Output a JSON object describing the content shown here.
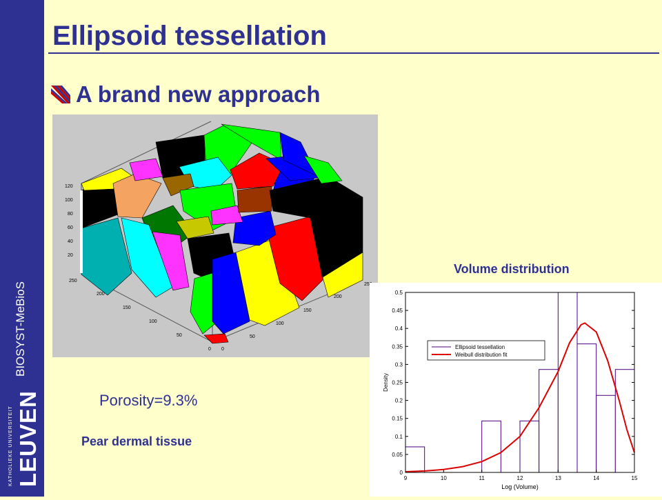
{
  "slide": {
    "title": "Ellipsoid tessellation",
    "bullet": "A brand new approach",
    "sidebar_text": "BIOSYST-MeBioS",
    "logo_small": "KATHOLIEKE UNIVERSITEIT",
    "logo_big": "LEUVEN",
    "porosity": "Porosity=9.3%",
    "tissue": "Pear dermal tissue",
    "volume_title": "Volume distribution"
  },
  "colors": {
    "accent": "#2e3192",
    "background": "#ffffcc",
    "curve": "#dd0000",
    "bars": "#4b0082"
  },
  "panel3d": {
    "z_ticks": [
      "120",
      "100",
      "80",
      "60",
      "40",
      "20"
    ],
    "y_ticks": [
      "250",
      "200",
      "150",
      "100",
      "50",
      "0"
    ],
    "x_ticks": [
      "0",
      "50",
      "100",
      "150",
      "200",
      "250"
    ]
  },
  "chart_data": {
    "type": "bar",
    "xlabel": "Log (Volume)",
    "ylabel": "Density",
    "xlim": [
      9,
      15
    ],
    "ylim": [
      0,
      0.5
    ],
    "x_ticks": [
      9,
      10,
      11,
      12,
      13,
      14,
      15
    ],
    "y_ticks": [
      0,
      0.05,
      0.1,
      0.15,
      0.2,
      0.25,
      0.3,
      0.35,
      0.4,
      0.45,
      0.5
    ],
    "legend": {
      "placement": "top-left"
    },
    "series": [
      {
        "name": "Ellipsoid tessellation",
        "kind": "histogram",
        "bins": [
          {
            "x0": 9.0,
            "x1": 9.5,
            "value": 0.071
          },
          {
            "x0": 9.5,
            "x1": 10.0,
            "value": 0
          },
          {
            "x0": 10.0,
            "x1": 10.5,
            "value": 0
          },
          {
            "x0": 10.5,
            "x1": 11.0,
            "value": 0
          },
          {
            "x0": 11.0,
            "x1": 11.5,
            "value": 0.143
          },
          {
            "x0": 11.5,
            "x1": 12.0,
            "value": 0
          },
          {
            "x0": 12.0,
            "x1": 12.5,
            "value": 0.143
          },
          {
            "x0": 12.5,
            "x1": 13.0,
            "value": 0.286
          },
          {
            "x0": 13.0,
            "x1": 13.5,
            "value": 0.5
          },
          {
            "x0": 13.5,
            "x1": 14.0,
            "value": 0.357
          },
          {
            "x0": 14.0,
            "x1": 14.5,
            "value": 0.214
          },
          {
            "x0": 14.5,
            "x1": 15.0,
            "value": 0.286
          }
        ]
      },
      {
        "name": "Weibull distribution fit",
        "kind": "line",
        "points": [
          [
            9.0,
            0.002
          ],
          [
            9.5,
            0.004
          ],
          [
            10.0,
            0.008
          ],
          [
            10.5,
            0.016
          ],
          [
            11.0,
            0.03
          ],
          [
            11.5,
            0.055
          ],
          [
            12.0,
            0.1
          ],
          [
            12.5,
            0.18
          ],
          [
            13.0,
            0.28
          ],
          [
            13.3,
            0.36
          ],
          [
            13.6,
            0.41
          ],
          [
            13.7,
            0.415
          ],
          [
            14.0,
            0.39
          ],
          [
            14.3,
            0.31
          ],
          [
            14.6,
            0.2
          ],
          [
            14.8,
            0.12
          ],
          [
            15.0,
            0.055
          ]
        ]
      }
    ]
  }
}
